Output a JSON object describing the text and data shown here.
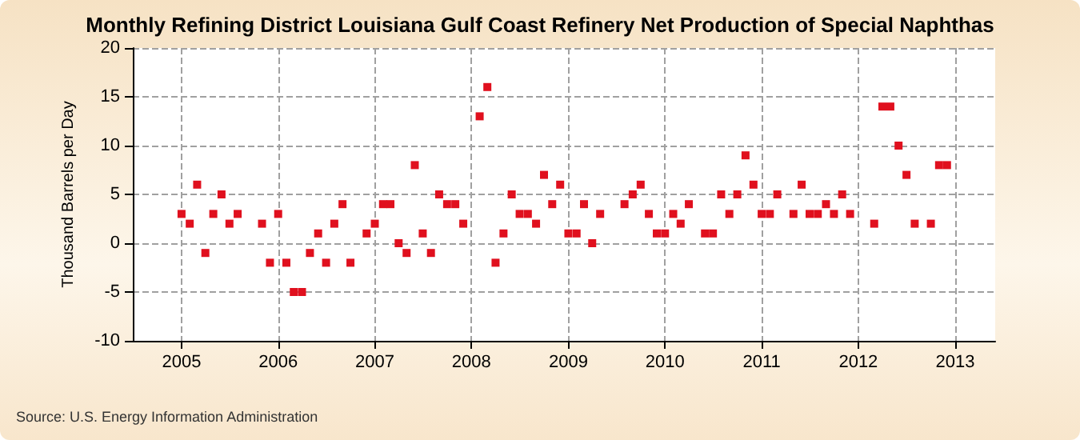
{
  "chart_data": {
    "type": "scatter",
    "title": "Monthly Refining District Louisiana Gulf Coast Refinery Net Production of Special Naphthas",
    "ylabel": "Thousand Barrels per Day",
    "annotations": [
      "Source: U.S. Energy Information Administration"
    ],
    "x": [
      "2005-01",
      "2005-02",
      "2005-03",
      "2005-04",
      "2005-05",
      "2005-06",
      "2005-07",
      "2005-08",
      "2005-11",
      "2005-12",
      "2006-01",
      "2006-02",
      "2006-03",
      "2006-04",
      "2006-05",
      "2006-06",
      "2006-07",
      "2006-08",
      "2006-09",
      "2006-10",
      "2006-12",
      "2007-01",
      "2007-02",
      "2007-03",
      "2007-04",
      "2007-05",
      "2007-06",
      "2007-07",
      "2007-08",
      "2007-09",
      "2007-10",
      "2007-11",
      "2007-12",
      "2008-02",
      "2008-03",
      "2008-04",
      "2008-05",
      "2008-06",
      "2008-07",
      "2008-08",
      "2008-09",
      "2008-10",
      "2008-11",
      "2008-12",
      "2009-01",
      "2009-02",
      "2009-03",
      "2009-04",
      "2009-05",
      "2009-08",
      "2009-09",
      "2009-10",
      "2009-11",
      "2009-12",
      "2010-01",
      "2010-02",
      "2010-03",
      "2010-04",
      "2010-06",
      "2010-07",
      "2010-08",
      "2010-09",
      "2010-10",
      "2010-11",
      "2010-12",
      "2011-01",
      "2011-02",
      "2011-03",
      "2011-05",
      "2011-06",
      "2011-07",
      "2011-08",
      "2011-09",
      "2011-10",
      "2011-11",
      "2011-12",
      "2012-03",
      "2012-04",
      "2012-05",
      "2012-06",
      "2012-07",
      "2012-08",
      "2012-10",
      "2012-11",
      "2012-12"
    ],
    "series": [
      {
        "color": "#e0101e",
        "values": [
          3,
          2,
          6,
          -1,
          3,
          5,
          2,
          3,
          2,
          -2,
          3,
          -2,
          -5,
          -5,
          -1,
          1,
          -2,
          2,
          4,
          -2,
          1,
          2,
          4,
          4,
          0,
          -1,
          8,
          1,
          -1,
          5,
          4,
          4,
          2,
          13,
          16,
          -2,
          1,
          5,
          3,
          3,
          2,
          7,
          4,
          6,
          1,
          1,
          4,
          0,
          3,
          4,
          5,
          6,
          3,
          1,
          1,
          3,
          2,
          4,
          1,
          1,
          5,
          3,
          5,
          9,
          6,
          3,
          3,
          5,
          3,
          6,
          3,
          3,
          4,
          3,
          5,
          3,
          2,
          14,
          14,
          10,
          7,
          2,
          2,
          8,
          8
        ]
      }
    ],
    "xlim": [
      "2004-07",
      "2013-06"
    ],
    "xticks": [
      "2005",
      "2006",
      "2007",
      "2008",
      "2009",
      "2010",
      "2011",
      "2012",
      "2013"
    ],
    "ylim": [
      -10,
      20
    ],
    "yticks": [
      -10,
      -5,
      0,
      5,
      10,
      15,
      20
    ],
    "grid": true,
    "marker": "square"
  }
}
